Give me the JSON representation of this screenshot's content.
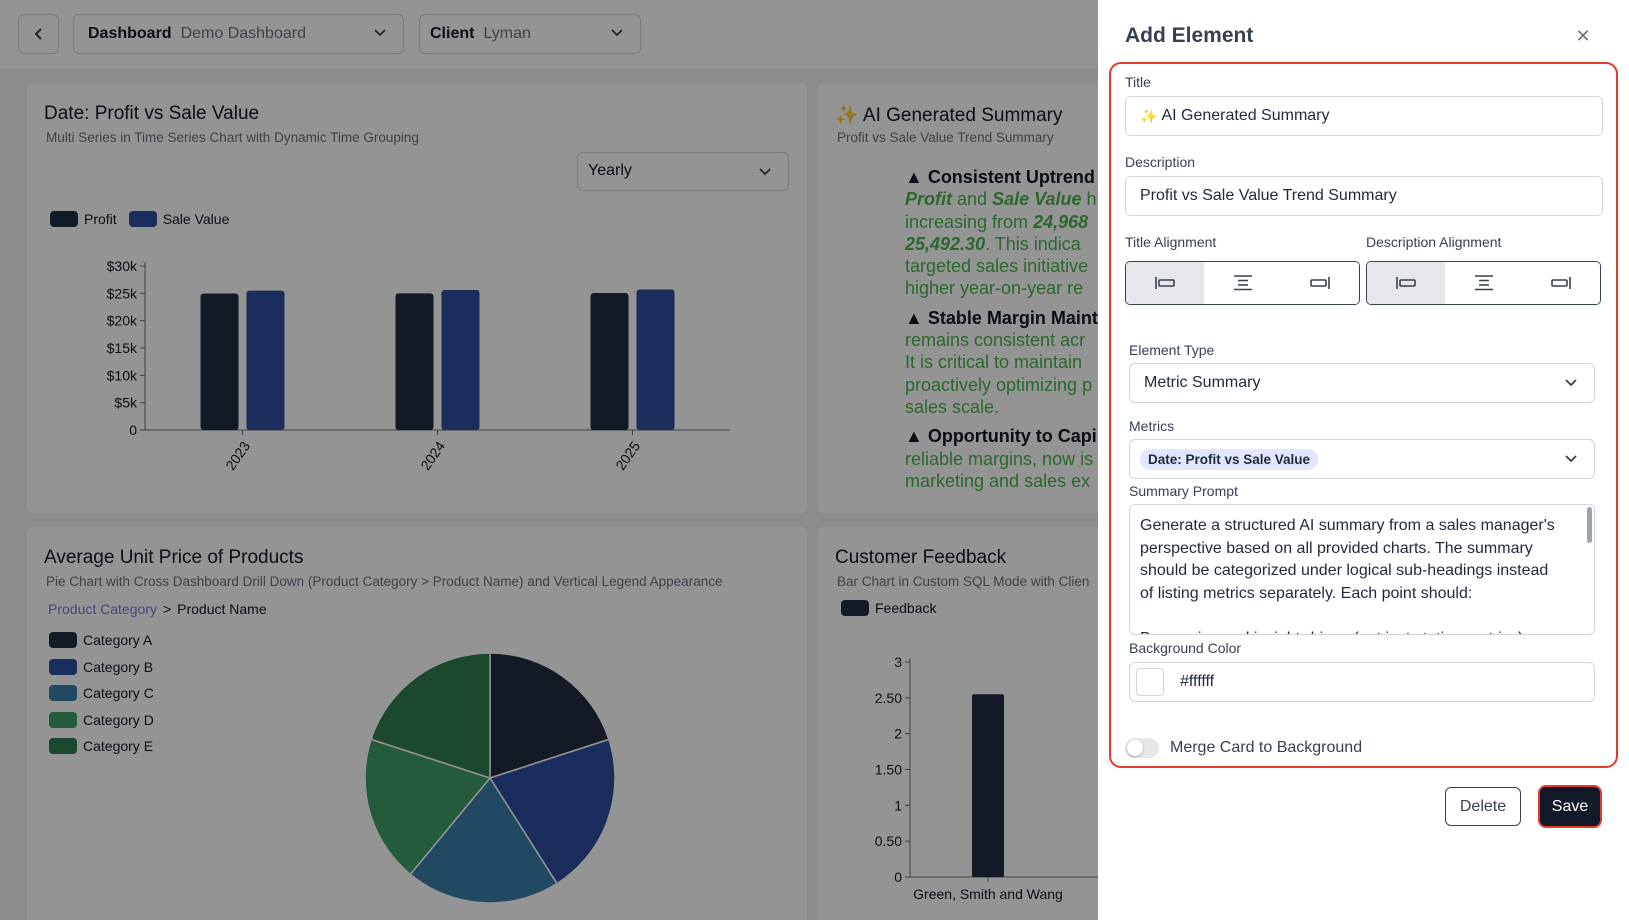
{
  "topbar": {
    "back_icon": "chevron-left-icon",
    "dashboard_key": "Dashboard",
    "dashboard_value": "Demo Dashboard",
    "client_key": "Client",
    "client_value": "Lyman"
  },
  "cards": {
    "profit_chart": {
      "title": "Date: Profit vs Sale Value",
      "subtitle": "Multi Series in Time Series Chart with Dynamic Time Grouping",
      "grouping": "Yearly"
    },
    "ai_summary": {
      "title": "AI Generated Summary",
      "subtitle": "Profit vs Sale Value Trend Summary",
      "p1_heading": "▲ Consistent Uptrend",
      "p1_em1": "Profit",
      "p1_and": "and",
      "p1_em2": "Sale Value",
      "p1_tail": "h",
      "p1_line2": "increasing from",
      "p1_val1": "24,968",
      "p1_val2": "25,492.30",
      "p1_line3_tail": ". This indica",
      "p1_line4": "targeted sales initiative",
      "p1_line5": "higher year-on-year re",
      "p2_heading": "▲ Stable Margin Maint",
      "p2_line1": "remains consistent acr",
      "p2_line2": "It is critical to maintain",
      "p2_line3": "proactively optimizing p",
      "p2_line4": "sales scale.",
      "p3_heading": "▲ Opportunity to Capi",
      "p3_line1": "reliable margins, now is",
      "p3_line2": "marketing and sales ex"
    },
    "unit_price": {
      "title": "Average Unit Price of Products",
      "subtitle": "Pie Chart with Cross Dashboard Drill Down (Product Category > Product Name) and Vertical Legend Appearance",
      "breadcrumb_active": "Product Category",
      "breadcrumb_sep": ">",
      "breadcrumb_next": "Product Name"
    },
    "feedback": {
      "title": "Customer Feedback",
      "subtitle": "Bar Chart in Custom SQL Mode with Clien"
    }
  },
  "chart_data": [
    {
      "type": "bar",
      "categories": [
        "2023",
        "2024",
        "2025"
      ],
      "series": [
        {
          "name": "Profit",
          "values": [
            24968,
            25000,
            25050
          ],
          "color": "#1f2d43"
        },
        {
          "name": "Sale Value",
          "values": [
            25492.3,
            25600,
            25700
          ],
          "color": "#2f4fa0"
        }
      ],
      "yticks": [
        "0",
        "$5k",
        "$10k",
        "$15k",
        "$20k",
        "$25k",
        "$30k"
      ],
      "ylim": [
        0,
        30000
      ],
      "legend": "top-left"
    },
    {
      "type": "pie",
      "categories": [
        "Category A",
        "Category B",
        "Category C",
        "Category D",
        "Category E"
      ],
      "values": [
        20,
        21,
        20,
        19,
        20
      ],
      "colors": [
        "#1f2d43",
        "#2f4fa0",
        "#3a7ea8",
        "#3f9e6a",
        "#2f7d50"
      ],
      "legend": "left"
    },
    {
      "type": "bar",
      "categories": [
        "Green, Smith and Wang"
      ],
      "series": [
        {
          "name": "Feedback",
          "values": [
            2.55
          ],
          "color": "#1f2d43"
        }
      ],
      "yticks": [
        "0",
        "0.50",
        "1",
        "1.50",
        "2",
        "2.50",
        "3"
      ],
      "ylim": [
        0,
        3
      ],
      "legend": "top-left"
    }
  ],
  "drawer": {
    "title": "Add Element",
    "close_icon": "close-icon",
    "title_label": "Title",
    "title_value": "AI Generated Summary",
    "description_label": "Description",
    "description_value": "Profit vs Sale Value Trend Summary",
    "title_alignment_label": "Title Alignment",
    "description_alignment_label": "Description Alignment",
    "title_alignment_selected": "left",
    "description_alignment_selected": "left",
    "element_type_label": "Element Type",
    "element_type_value": "Metric Summary",
    "metrics_label": "Metrics",
    "metrics_chip": "Date: Profit vs Sale Value",
    "summary_prompt_label": "Summary Prompt",
    "summary_prompt_value": "Generate a structured AI summary from a sales manager's perspective based on all provided charts. The summary should be categorized under logical sub-headings instead of listing metrics separately. Each point should:\n\nBe concise and insight-driven (not just stating metrics)",
    "background_color_label": "Background Color",
    "background_color_value": "#ffffff",
    "merge_label": "Merge Card to Background",
    "merge_enabled": false,
    "delete_label": "Delete",
    "save_label": "Save",
    "highlight_color": "#e23b2e"
  }
}
